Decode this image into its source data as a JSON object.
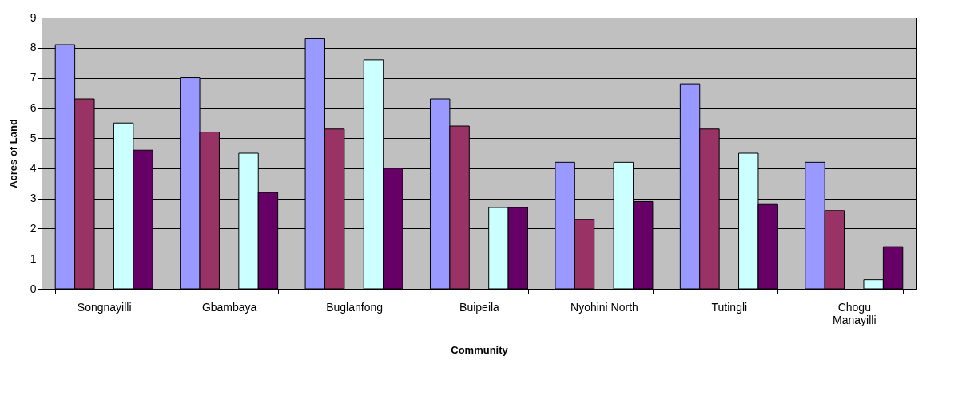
{
  "chart_data": {
    "type": "bar",
    "xlabel": "Community",
    "ylabel": "Acres of Land",
    "categories": [
      "Songnayilli",
      "Gbambaya",
      "Buglanfong",
      "Buipeila",
      "Nyohini North",
      "Tutingli",
      "Chogu Manayilli"
    ],
    "series": [
      {
        "color": "#9999ff",
        "values": [
          8.1,
          7.0,
          8.3,
          6.3,
          4.2,
          6.8,
          4.2
        ]
      },
      {
        "color": "#993366",
        "values": [
          6.3,
          5.2,
          5.3,
          5.4,
          2.3,
          5.3,
          2.6
        ]
      },
      {
        "color": "#ffffcc",
        "values": [
          null,
          null,
          null,
          null,
          null,
          null,
          null
        ]
      },
      {
        "color": "#ccffff",
        "values": [
          5.5,
          4.5,
          7.6,
          2.7,
          4.2,
          4.5,
          0.3
        ]
      },
      {
        "color": "#660066",
        "values": [
          4.6,
          3.2,
          4.0,
          2.7,
          2.9,
          2.8,
          1.4
        ]
      }
    ],
    "ylim": [
      0,
      9
    ],
    "yticks": [
      0,
      1,
      2,
      3,
      4,
      5,
      6,
      7,
      8,
      9
    ],
    "grid": "y",
    "legend": false
  }
}
